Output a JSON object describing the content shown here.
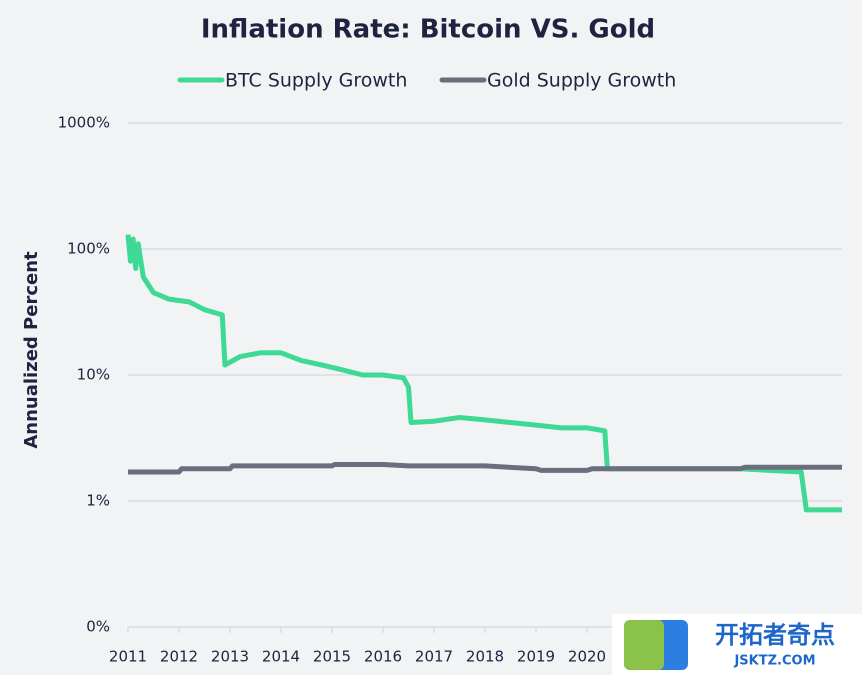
{
  "chart_data": {
    "type": "line",
    "title": "Inflation Rate: Bitcoin VS. Gold",
    "y_label": "Annualized Percent",
    "log_scale": true,
    "grid": true,
    "legend": "top",
    "xlim": [
      2011,
      2025
    ],
    "xticks": [
      2011,
      2012,
      2013,
      2014,
      2015,
      2016,
      2017,
      2018,
      2019,
      2020
    ],
    "ylim": [
      0.1,
      1000
    ],
    "yticks": [
      {
        "value": 0.1,
        "label": "0%"
      },
      {
        "value": 1,
        "label": "1%"
      },
      {
        "value": 10,
        "label": "10%"
      },
      {
        "value": 100,
        "label": "100%"
      },
      {
        "value": 1000,
        "label": "1000%"
      }
    ],
    "series": [
      {
        "name": "BTC Supply Growth",
        "color": "#3dd995",
        "x": [
          2011.0,
          2011.05,
          2011.1,
          2011.15,
          2011.2,
          2011.3,
          2011.5,
          2011.8,
          2012.2,
          2012.5,
          2012.85,
          2012.9,
          2013.2,
          2013.6,
          2014.0,
          2014.4,
          2014.8,
          2015.2,
          2015.6,
          2016.0,
          2016.4,
          2016.5,
          2016.55,
          2017.0,
          2017.5,
          2018.0,
          2018.5,
          2019.0,
          2019.5,
          2020.0,
          2020.35,
          2020.4,
          2021.0,
          2022.0,
          2023.0,
          2024.2,
          2024.3,
          2025.0
        ],
        "values": [
          130,
          80,
          120,
          70,
          110,
          60,
          45,
          40,
          38,
          33,
          30,
          12,
          14,
          15,
          15,
          13,
          12,
          11,
          10,
          10,
          9.5,
          8,
          4.2,
          4.3,
          4.6,
          4.4,
          4.2,
          4.0,
          3.8,
          3.8,
          3.6,
          1.8,
          1.8,
          1.8,
          1.8,
          1.7,
          0.85,
          0.85
        ]
      },
      {
        "name": "Gold Supply Growth",
        "color": "#6b6e7d",
        "x": [
          2011.0,
          2012.0,
          2012.05,
          2013.0,
          2013.05,
          2014.0,
          2015.0,
          2015.05,
          2016.0,
          2016.5,
          2017.0,
          2018.0,
          2019.0,
          2019.1,
          2020.0,
          2020.1,
          2023.0,
          2023.1,
          2025.0
        ],
        "values": [
          1.7,
          1.7,
          1.8,
          1.8,
          1.9,
          1.9,
          1.9,
          1.95,
          1.95,
          1.9,
          1.9,
          1.9,
          1.8,
          1.75,
          1.75,
          1.8,
          1.8,
          1.85,
          1.85
        ]
      }
    ]
  },
  "watermark": {
    "name": "开拓者奇点",
    "site": "JSKTZ.COM"
  }
}
